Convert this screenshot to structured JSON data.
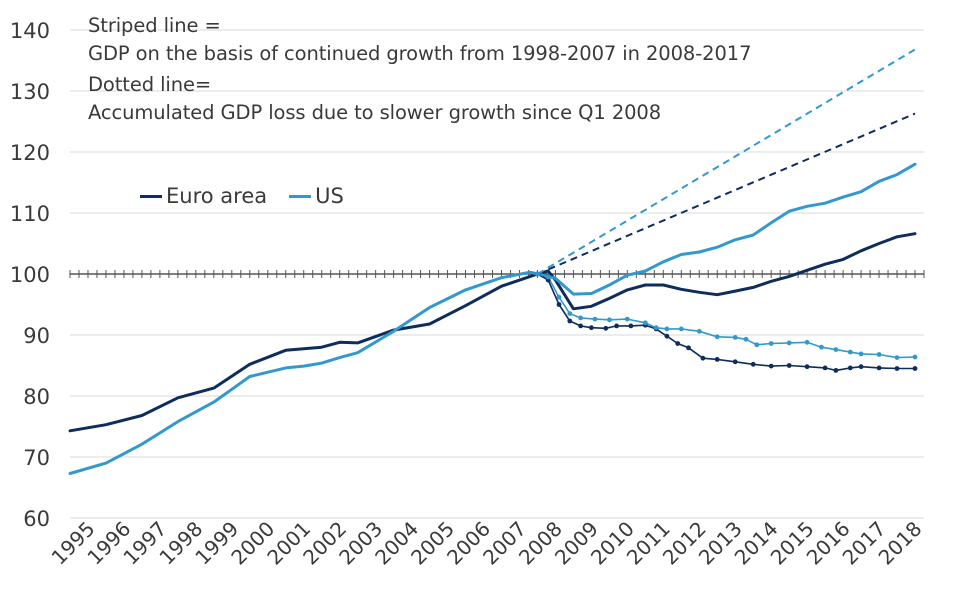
{
  "chart_data": {
    "type": "line",
    "notes": [
      "Striped line =",
      "GDP on the basis of continued growth from 1998-2007 in 2008-2017",
      "Dotted line=",
      "Accumulated GDP loss due to slower growth since Q1 2008"
    ],
    "ylim": [
      60,
      140
    ],
    "yticks": [
      60,
      70,
      80,
      90,
      100,
      110,
      120,
      130,
      140
    ],
    "xlim": [
      1995.0,
      2018.75
    ],
    "xticks": [
      "1995",
      "1996",
      "1997",
      "1998",
      "1999",
      "2000",
      "2001",
      "2002",
      "2003",
      "2004",
      "2005",
      "2006",
      "2007",
      "2008",
      "2009",
      "2010",
      "2011",
      "2012",
      "2013",
      "2014",
      "2015",
      "2016",
      "2017",
      "2018"
    ],
    "colors": {
      "euro": "#0e2d5c",
      "us": "#3399cc",
      "axis": "#555555"
    },
    "series": [
      {
        "name": "Euro area",
        "style": "solid",
        "points": [
          [
            1995.0,
            74.3
          ],
          [
            1996.0,
            75.3
          ],
          [
            1997.0,
            76.8
          ],
          [
            1998.0,
            79.7
          ],
          [
            1999.0,
            81.3
          ],
          [
            2000.0,
            85.2
          ],
          [
            2001.0,
            87.5
          ],
          [
            2002.0,
            88.0
          ],
          [
            2002.5,
            88.8
          ],
          [
            2003.0,
            88.7
          ],
          [
            2004.0,
            90.8
          ],
          [
            2005.0,
            91.8
          ],
          [
            2006.0,
            94.8
          ],
          [
            2007.0,
            98.0
          ],
          [
            2008.0,
            100.0
          ],
          [
            2008.3,
            100.5
          ],
          [
            2008.5,
            99.0
          ],
          [
            2009.0,
            94.3
          ],
          [
            2009.5,
            94.7
          ],
          [
            2010.0,
            96.0
          ],
          [
            2010.5,
            97.4
          ],
          [
            2011.0,
            98.2
          ],
          [
            2011.5,
            98.2
          ],
          [
            2012.0,
            97.5
          ],
          [
            2012.5,
            97.0
          ],
          [
            2013.0,
            96.6
          ],
          [
            2013.5,
            97.2
          ],
          [
            2014.0,
            97.8
          ],
          [
            2014.5,
            98.8
          ],
          [
            2015.0,
            99.6
          ],
          [
            2015.5,
            100.6
          ],
          [
            2016.0,
            101.6
          ],
          [
            2016.5,
            102.4
          ],
          [
            2017.0,
            103.8
          ],
          [
            2017.5,
            105.0
          ],
          [
            2018.0,
            106.1
          ],
          [
            2018.5,
            106.6
          ]
        ]
      },
      {
        "name": "US",
        "style": "solid",
        "points": [
          [
            1995.0,
            67.3
          ],
          [
            1996.0,
            69.0
          ],
          [
            1997.0,
            72.1
          ],
          [
            1998.0,
            75.8
          ],
          [
            1999.0,
            79.0
          ],
          [
            2000.0,
            83.2
          ],
          [
            2001.0,
            84.6
          ],
          [
            2001.5,
            84.9
          ],
          [
            2002.0,
            85.4
          ],
          [
            2002.5,
            86.3
          ],
          [
            2003.0,
            87.1
          ],
          [
            2004.0,
            90.6
          ],
          [
            2005.0,
            94.5
          ],
          [
            2006.0,
            97.4
          ],
          [
            2007.0,
            99.4
          ],
          [
            2007.8,
            100.3
          ],
          [
            2008.0,
            100.0
          ],
          [
            2008.5,
            99.3
          ],
          [
            2009.0,
            96.7
          ],
          [
            2009.5,
            96.8
          ],
          [
            2010.0,
            98.2
          ],
          [
            2010.5,
            99.8
          ],
          [
            2011.0,
            100.5
          ],
          [
            2011.5,
            102.0
          ],
          [
            2012.0,
            103.2
          ],
          [
            2012.5,
            103.6
          ],
          [
            2013.0,
            104.4
          ],
          [
            2013.5,
            105.6
          ],
          [
            2014.0,
            106.4
          ],
          [
            2014.5,
            108.4
          ],
          [
            2015.0,
            110.3
          ],
          [
            2015.5,
            111.1
          ],
          [
            2016.0,
            111.6
          ],
          [
            2016.5,
            112.6
          ],
          [
            2017.0,
            113.5
          ],
          [
            2017.5,
            115.2
          ],
          [
            2018.0,
            116.3
          ],
          [
            2018.5,
            118.0
          ]
        ]
      },
      {
        "name": "Euro area trend",
        "style": "dashed",
        "points": [
          [
            2008.0,
            100.0
          ],
          [
            2018.5,
            126.3
          ]
        ]
      },
      {
        "name": "US trend",
        "style": "dashed",
        "points": [
          [
            2008.0,
            100.0
          ],
          [
            2018.5,
            136.8
          ]
        ]
      },
      {
        "name": "Euro area loss",
        "style": "dotted",
        "points": [
          [
            2008.0,
            100.0
          ],
          [
            2008.3,
            99.0
          ],
          [
            2008.6,
            95.0
          ],
          [
            2008.9,
            92.3
          ],
          [
            2009.2,
            91.5
          ],
          [
            2009.5,
            91.2
          ],
          [
            2009.9,
            91.1
          ],
          [
            2010.2,
            91.5
          ],
          [
            2010.6,
            91.5
          ],
          [
            2011.0,
            91.6
          ],
          [
            2011.3,
            91.0
          ],
          [
            2011.6,
            89.8
          ],
          [
            2011.9,
            88.6
          ],
          [
            2012.2,
            87.9
          ],
          [
            2012.6,
            86.2
          ],
          [
            2013.0,
            86.0
          ],
          [
            2013.5,
            85.6
          ],
          [
            2014.0,
            85.2
          ],
          [
            2014.5,
            84.9
          ],
          [
            2015.0,
            85.0
          ],
          [
            2015.5,
            84.8
          ],
          [
            2016.0,
            84.6
          ],
          [
            2016.3,
            84.2
          ],
          [
            2016.7,
            84.6
          ],
          [
            2017.0,
            84.8
          ],
          [
            2017.5,
            84.6
          ],
          [
            2018.0,
            84.5
          ],
          [
            2018.5,
            84.5
          ]
        ]
      },
      {
        "name": "US loss",
        "style": "dotted",
        "points": [
          [
            2008.0,
            100.0
          ],
          [
            2008.3,
            99.5
          ],
          [
            2008.6,
            96.2
          ],
          [
            2008.9,
            93.5
          ],
          [
            2009.2,
            92.8
          ],
          [
            2009.6,
            92.6
          ],
          [
            2010.0,
            92.5
          ],
          [
            2010.5,
            92.6
          ],
          [
            2011.0,
            92.0
          ],
          [
            2011.3,
            91.2
          ],
          [
            2011.6,
            91.0
          ],
          [
            2012.0,
            91.0
          ],
          [
            2012.5,
            90.6
          ],
          [
            2013.0,
            89.7
          ],
          [
            2013.5,
            89.6
          ],
          [
            2013.8,
            89.3
          ],
          [
            2014.1,
            88.4
          ],
          [
            2014.5,
            88.6
          ],
          [
            2015.0,
            88.7
          ],
          [
            2015.5,
            88.8
          ],
          [
            2015.9,
            88.0
          ],
          [
            2016.3,
            87.6
          ],
          [
            2016.7,
            87.2
          ],
          [
            2017.0,
            86.9
          ],
          [
            2017.5,
            86.8
          ],
          [
            2018.0,
            86.3
          ],
          [
            2018.5,
            86.4
          ]
        ]
      }
    ]
  }
}
